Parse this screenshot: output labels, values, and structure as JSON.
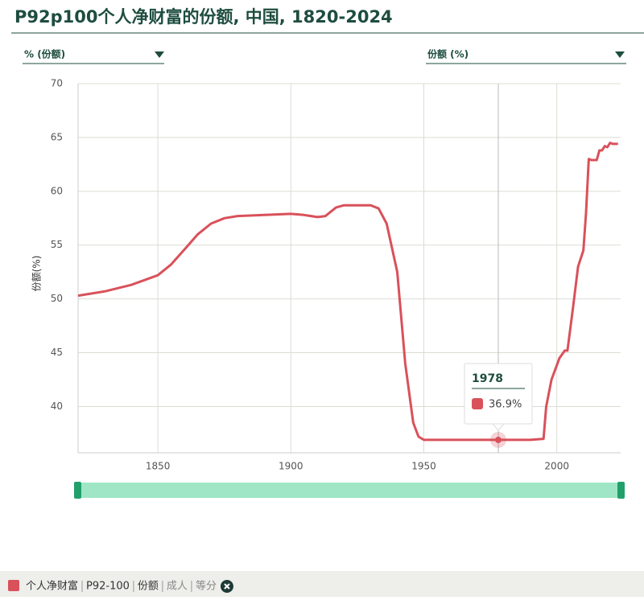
{
  "chart_data": {
    "type": "line",
    "title": "P92p100个人净财富的份额, 中国, 1820-2024",
    "left_selector": "% (份额)",
    "right_selector": "份额 (%)",
    "y_label": "份额(%)",
    "x": [
      1820,
      1830,
      1840,
      1850,
      1855,
      1860,
      1865,
      1870,
      1875,
      1880,
      1890,
      1900,
      1905,
      1910,
      1913,
      1917,
      1920,
      1925,
      1930,
      1933,
      1936,
      1940,
      1943,
      1946,
      1948,
      1950,
      1960,
      1970,
      1978,
      1990,
      1995,
      1996,
      1998,
      2001,
      2003,
      2004,
      2006,
      2008,
      2010,
      2011,
      2012,
      2013,
      2015,
      2016,
      2017,
      2018,
      2019,
      2020,
      2021,
      2023
    ],
    "series": [
      {
        "name": "个人净财富",
        "color": "#d9515a",
        "values": [
          50.3,
          50.7,
          51.3,
          52.2,
          53.2,
          54.6,
          56.0,
          57.0,
          57.5,
          57.7,
          57.8,
          57.9,
          57.8,
          57.6,
          57.7,
          58.5,
          58.7,
          58.7,
          58.7,
          58.4,
          57.0,
          52.5,
          44.0,
          38.5,
          37.2,
          36.9,
          36.9,
          36.9,
          36.9,
          36.9,
          37.0,
          40.0,
          42.5,
          44.5,
          45.2,
          45.2,
          49.0,
          53.0,
          54.5,
          58.0,
          63.0,
          62.9,
          62.9,
          63.8,
          63.8,
          64.2,
          64.1,
          64.5,
          64.4,
          64.4
        ]
      }
    ],
    "legend_tags": [
      "P92-100",
      "份额",
      "成人",
      "等分"
    ],
    "tooltip": {
      "title": "1978",
      "x": 1978,
      "value": 36.9,
      "value_label": "36.9%"
    },
    "xlim": [
      1820,
      2024
    ],
    "xticks": [
      1850,
      1900,
      1950,
      2000
    ],
    "ylim": [
      35.7,
      70
    ],
    "yticks": [
      40,
      45,
      50,
      55,
      60,
      65,
      70
    ],
    "grid": true
  }
}
